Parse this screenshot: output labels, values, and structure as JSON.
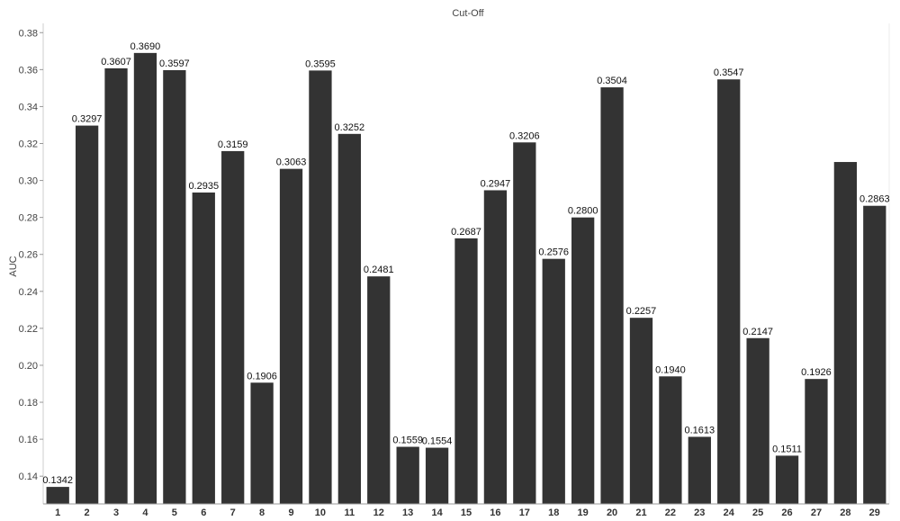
{
  "chart_data": {
    "type": "bar",
    "title": "Cut-Off",
    "xlabel": "",
    "ylabel": "AUC",
    "ylim": [
      0.125,
      0.385
    ],
    "yticks": [
      0.14,
      0.16,
      0.18,
      0.2,
      0.22,
      0.24,
      0.26,
      0.28,
      0.3,
      0.32,
      0.34,
      0.36,
      0.38
    ],
    "ytick_labels": [
      "0.14",
      "0.16",
      "0.18",
      "0.20",
      "0.22",
      "0.24",
      "0.26",
      "0.28",
      "0.30",
      "0.32",
      "0.34",
      "0.36",
      "0.38"
    ],
    "categories": [
      "1",
      "2",
      "3",
      "4",
      "5",
      "6",
      "7",
      "8",
      "9",
      "10",
      "11",
      "12",
      "13",
      "14",
      "15",
      "16",
      "17",
      "18",
      "19",
      "20",
      "21",
      "22",
      "23",
      "24",
      "25",
      "26",
      "27",
      "28",
      "29"
    ],
    "values": [
      0.1342,
      0.3297,
      0.3607,
      0.369,
      0.3597,
      0.2935,
      0.3159,
      0.1906,
      0.3063,
      0.3595,
      0.3252,
      0.2481,
      0.1559,
      0.1554,
      0.2687,
      0.2947,
      0.3206,
      0.2576,
      0.28,
      0.3504,
      0.2257,
      0.194,
      0.1613,
      0.3547,
      0.2147,
      0.1511,
      0.1926,
      0.31,
      0.2863
    ],
    "value_labels": [
      "0.1342",
      "0.3297",
      "0.3607",
      "0.3690",
      "0.3597",
      "0.2935",
      "0.3159",
      "0.1906",
      "0.3063",
      "0.3595",
      "0.3252",
      "0.2481",
      "0.1559",
      "0.1554",
      "0.2687",
      "0.2947",
      "0.3206",
      "0.2576",
      "0.2800",
      "0.3504",
      "0.2257",
      "0.1940",
      "0.1613",
      "0.3547",
      "0.2147",
      "0.1511",
      "0.1926",
      "",
      "0.2863"
    ],
    "grid": false,
    "bar_color": "#333333",
    "grid_line_color": "#eeeeee"
  }
}
